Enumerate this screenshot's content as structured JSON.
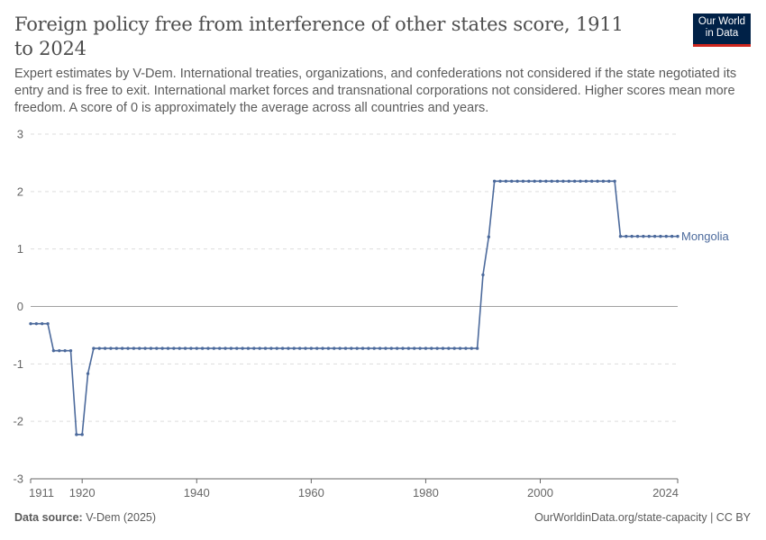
{
  "header": {
    "title": "Foreign policy free from interference of other states score, 1911 to 2024",
    "subtitle": "Expert estimates by V-Dem. International treaties, organizations, and confederations not considered if the state negotiated its entry and is free to exit. International market forces and transnational corporations not considered. Higher scores mean more freedom. A score of 0 is approximately the average across all countries and years."
  },
  "logo": {
    "line1": "Our World",
    "line2": "in Data"
  },
  "footer": {
    "source_label": "Data source:",
    "source_value": "V-Dem (2025)",
    "right": "OurWorldinData.org/state-capacity | CC BY"
  },
  "colors": {
    "series": "#4c6a9c",
    "grid": "#dddddd",
    "zero": "#a1a1a1",
    "axis": "#666666"
  },
  "chart_data": {
    "type": "line",
    "title": "Foreign policy free from interference of other states score, 1911 to 2024",
    "xlabel": "",
    "ylabel": "",
    "xlim": [
      1911,
      2024
    ],
    "ylim": [
      -3,
      3
    ],
    "x_ticks": [
      1911,
      1920,
      1940,
      1960,
      1980,
      2000,
      2024
    ],
    "y_ticks": [
      -3,
      -2,
      -1,
      0,
      1,
      2,
      3
    ],
    "y_tick_labels": [
      "-3",
      "-2",
      "-1",
      "0",
      "1",
      "2",
      "3"
    ],
    "grid": "horizontal dashed",
    "series": [
      {
        "name": "Mongolia",
        "x": [
          1911,
          1912,
          1913,
          1914,
          1915,
          1916,
          1917,
          1918,
          1919,
          1920,
          1921,
          1922,
          1923,
          1924,
          1925,
          1926,
          1927,
          1928,
          1929,
          1930,
          1931,
          1932,
          1933,
          1934,
          1935,
          1936,
          1937,
          1938,
          1939,
          1940,
          1941,
          1942,
          1943,
          1944,
          1945,
          1946,
          1947,
          1948,
          1949,
          1950,
          1951,
          1952,
          1953,
          1954,
          1955,
          1956,
          1957,
          1958,
          1959,
          1960,
          1961,
          1962,
          1963,
          1964,
          1965,
          1966,
          1967,
          1968,
          1969,
          1970,
          1971,
          1972,
          1973,
          1974,
          1975,
          1976,
          1977,
          1978,
          1979,
          1980,
          1981,
          1982,
          1983,
          1984,
          1985,
          1986,
          1987,
          1988,
          1989,
          1990,
          1991,
          1992,
          1993,
          1994,
          1995,
          1996,
          1997,
          1998,
          1999,
          2000,
          2001,
          2002,
          2003,
          2004,
          2005,
          2006,
          2007,
          2008,
          2009,
          2010,
          2011,
          2012,
          2013,
          2014,
          2015,
          2016,
          2017,
          2018,
          2019,
          2020,
          2021,
          2022,
          2023,
          2024
        ],
        "y": [
          -0.3,
          -0.3,
          -0.3,
          -0.3,
          -0.77,
          -0.77,
          -0.77,
          -0.77,
          -2.23,
          -2.23,
          -1.17,
          -0.73,
          -0.73,
          -0.73,
          -0.73,
          -0.73,
          -0.73,
          -0.73,
          -0.73,
          -0.73,
          -0.73,
          -0.73,
          -0.73,
          -0.73,
          -0.73,
          -0.73,
          -0.73,
          -0.73,
          -0.73,
          -0.73,
          -0.73,
          -0.73,
          -0.73,
          -0.73,
          -0.73,
          -0.73,
          -0.73,
          -0.73,
          -0.73,
          -0.73,
          -0.73,
          -0.73,
          -0.73,
          -0.73,
          -0.73,
          -0.73,
          -0.73,
          -0.73,
          -0.73,
          -0.73,
          -0.73,
          -0.73,
          -0.73,
          -0.73,
          -0.73,
          -0.73,
          -0.73,
          -0.73,
          -0.73,
          -0.73,
          -0.73,
          -0.73,
          -0.73,
          -0.73,
          -0.73,
          -0.73,
          -0.73,
          -0.73,
          -0.73,
          -0.73,
          -0.73,
          -0.73,
          -0.73,
          -0.73,
          -0.73,
          -0.73,
          -0.73,
          -0.73,
          -0.73,
          0.55,
          1.21,
          2.18,
          2.18,
          2.18,
          2.18,
          2.18,
          2.18,
          2.18,
          2.18,
          2.18,
          2.18,
          2.18,
          2.18,
          2.18,
          2.18,
          2.18,
          2.18,
          2.18,
          2.18,
          2.18,
          2.18,
          2.18,
          2.18,
          1.22,
          1.22,
          1.22,
          1.22,
          1.22,
          1.22,
          1.22,
          1.22,
          1.22,
          1.22,
          1.22
        ]
      }
    ]
  }
}
